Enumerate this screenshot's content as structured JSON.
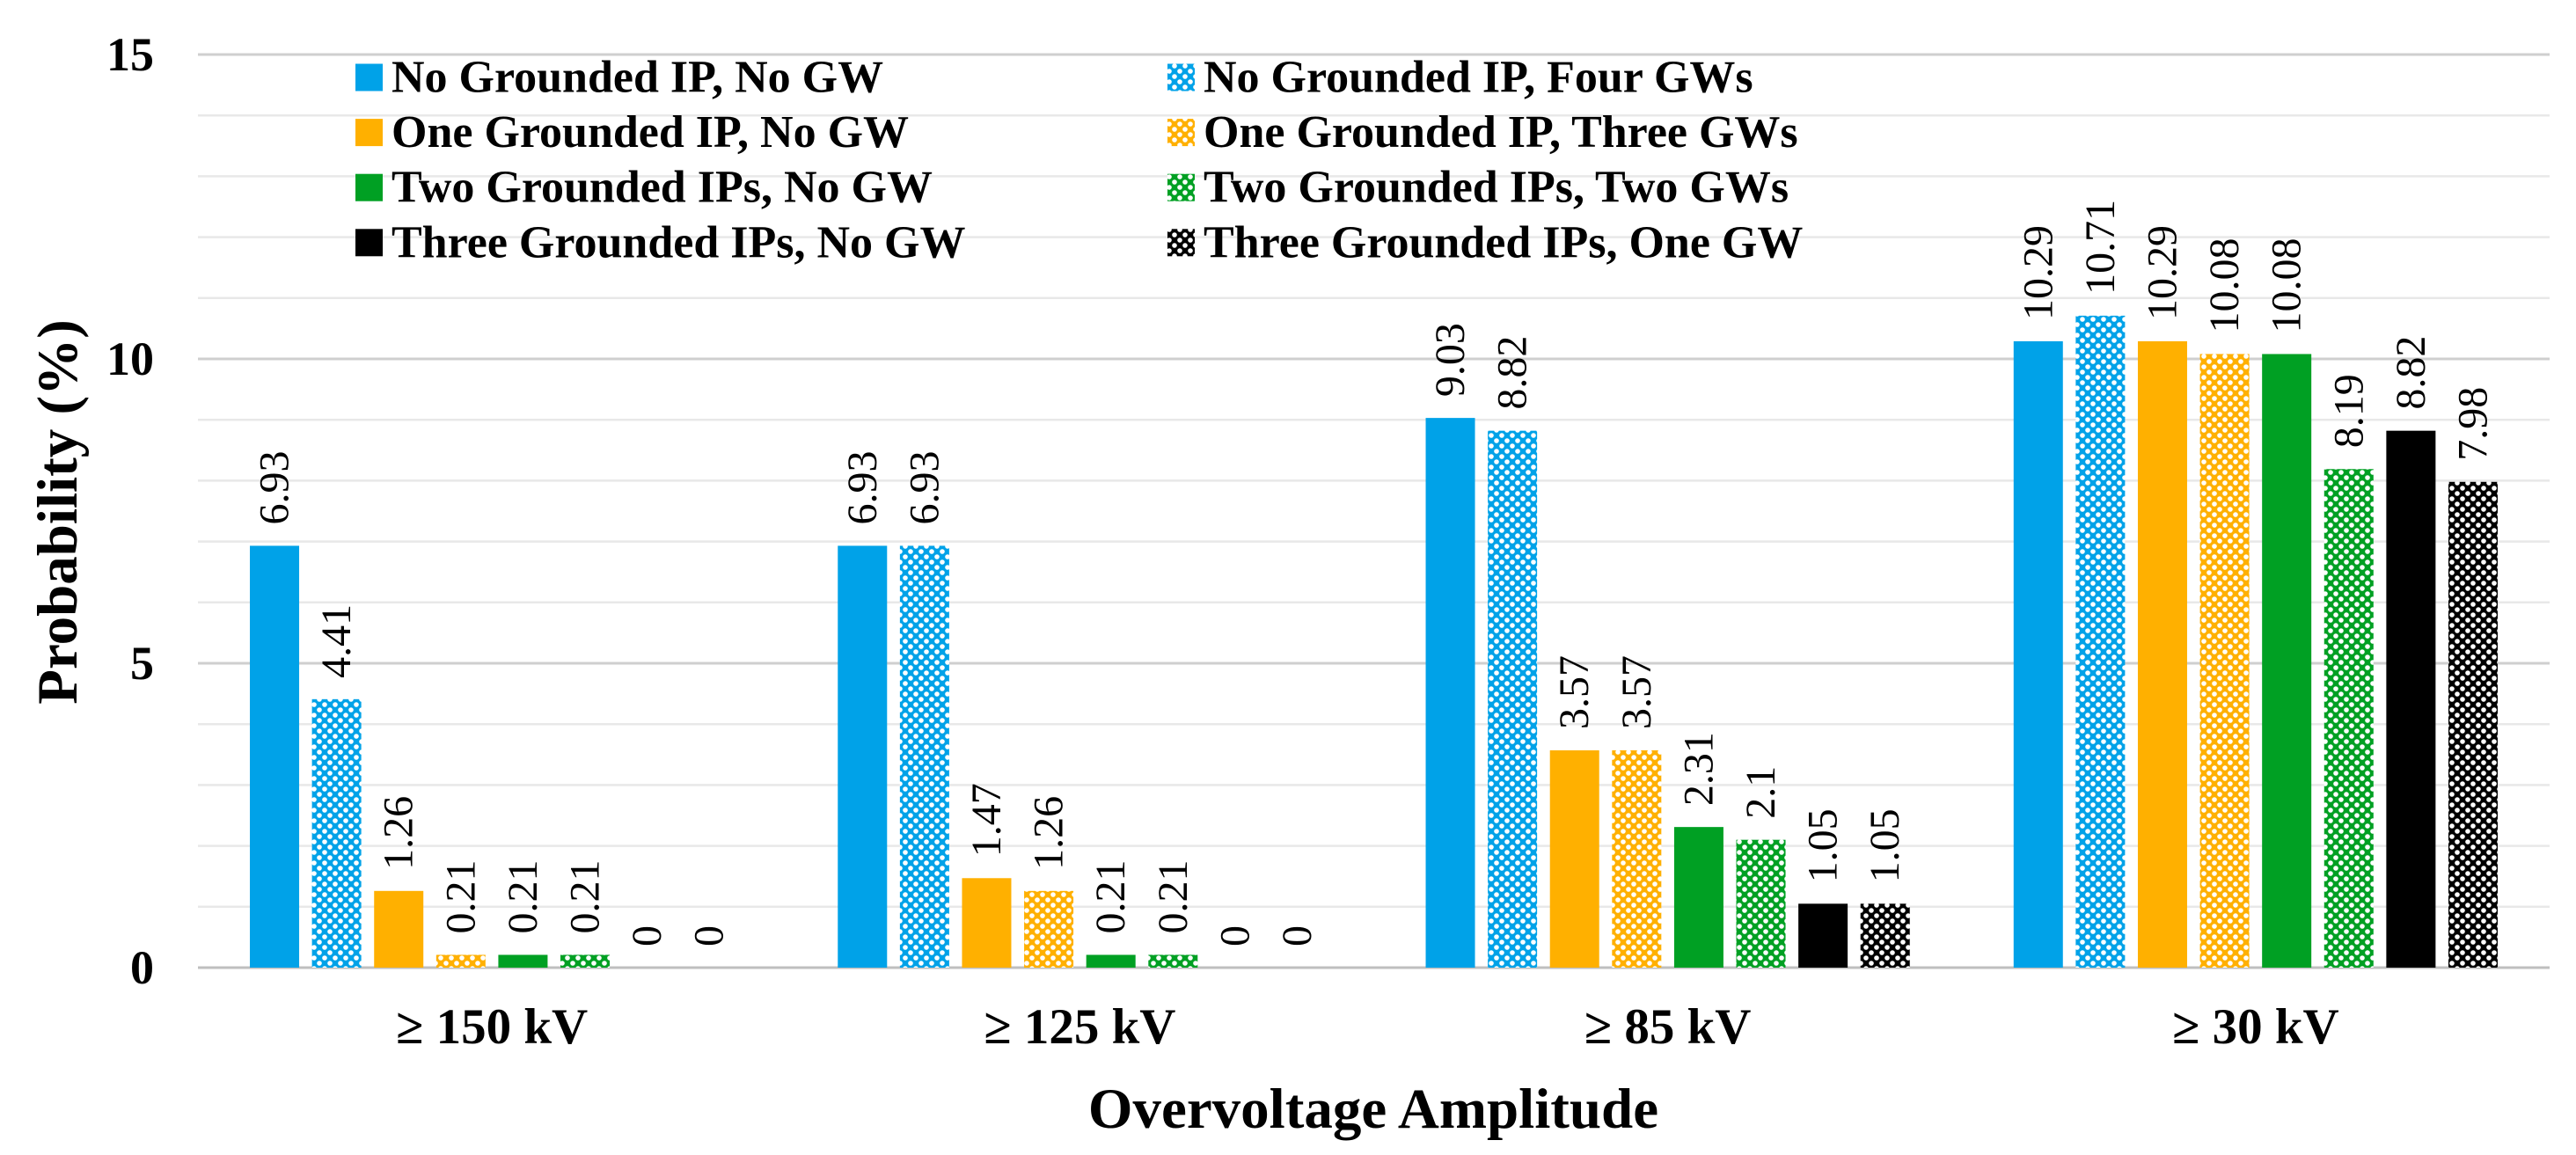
{
  "chart_data": {
    "type": "bar",
    "xlabel": "Overvoltage Amplitude",
    "ylabel": "Probability (%)",
    "ylim": [
      0,
      15
    ],
    "yticks": [
      0,
      5,
      10,
      15
    ],
    "grid": true,
    "grid_step": 1,
    "legend_position": "top-left",
    "categories": [
      "≥ 150 kV",
      "≥ 125 kV",
      "≥ 85 kV",
      "≥ 30 kV"
    ],
    "series": [
      {
        "name": "No Grounded IP, No GW",
        "color": "#00A2E8",
        "patterned": false,
        "values": [
          6.93,
          6.93,
          9.03,
          10.29
        ]
      },
      {
        "name": "No Grounded IP, Four GWs",
        "color": "#00A2E8",
        "patterned": true,
        "values": [
          4.41,
          6.93,
          8.82,
          10.71
        ]
      },
      {
        "name": "One Grounded IP, No GW",
        "color": "#FFB000",
        "patterned": false,
        "values": [
          1.26,
          1.47,
          3.57,
          10.29
        ]
      },
      {
        "name": "One Grounded IP, Three GWs",
        "color": "#FFB000",
        "patterned": true,
        "values": [
          0.21,
          1.26,
          3.57,
          10.08
        ]
      },
      {
        "name": "Two Grounded IPs, No GW",
        "color": "#00A023",
        "patterned": false,
        "values": [
          0.21,
          0.21,
          2.31,
          10.08
        ]
      },
      {
        "name": "Two Grounded IPs, Two GWs",
        "color": "#00A023",
        "patterned": true,
        "values": [
          0.21,
          0.21,
          2.1,
          8.19
        ]
      },
      {
        "name": "Three Grounded IPs, No GW",
        "color": "#000000",
        "patterned": false,
        "values": [
          0,
          0,
          1.05,
          8.82
        ]
      },
      {
        "name": "Three Grounded IPs, One GW",
        "color": "#000000",
        "patterned": true,
        "values": [
          0,
          0,
          1.05,
          7.98
        ]
      }
    ]
  }
}
